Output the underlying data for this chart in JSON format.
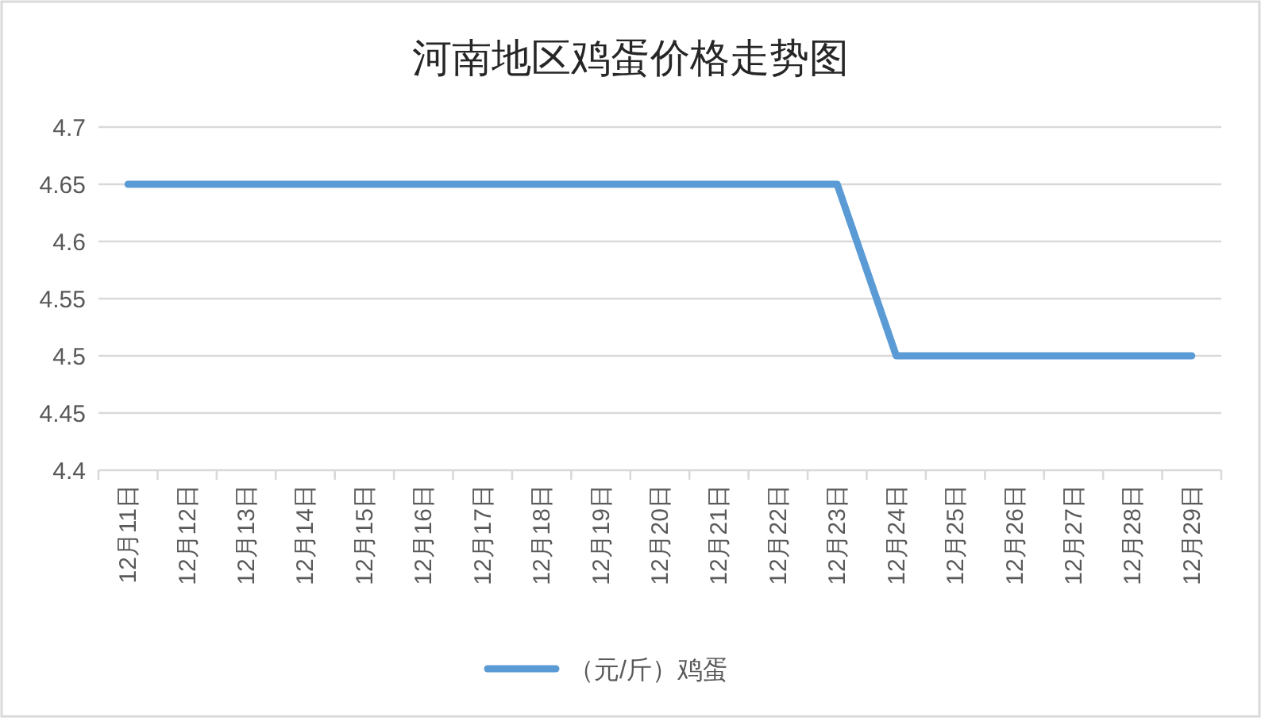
{
  "chart_data": {
    "type": "line",
    "title": "河南地区鸡蛋价格走势图",
    "categories": [
      "12月11日",
      "12月12日",
      "12月13日",
      "12月14日",
      "12月15日",
      "12月16日",
      "12月17日",
      "12月18日",
      "12月19日",
      "12月20日",
      "12月21日",
      "12月22日",
      "12月23日",
      "12月24日",
      "12月25日",
      "12月26日",
      "12月27日",
      "12月28日",
      "12月29日"
    ],
    "series": [
      {
        "name": "（元/斤）鸡蛋",
        "color": "#5b9bd5",
        "values": [
          4.65,
          4.65,
          4.65,
          4.65,
          4.65,
          4.65,
          4.65,
          4.65,
          4.65,
          4.65,
          4.65,
          4.65,
          4.65,
          4.5,
          4.5,
          4.5,
          4.5,
          4.5,
          4.5
        ]
      }
    ],
    "ylim": [
      4.4,
      4.7
    ],
    "yticks": [
      4.4,
      4.45,
      4.5,
      4.55,
      4.6,
      4.65,
      4.7
    ],
    "grid": "y",
    "legend": "bottom"
  }
}
